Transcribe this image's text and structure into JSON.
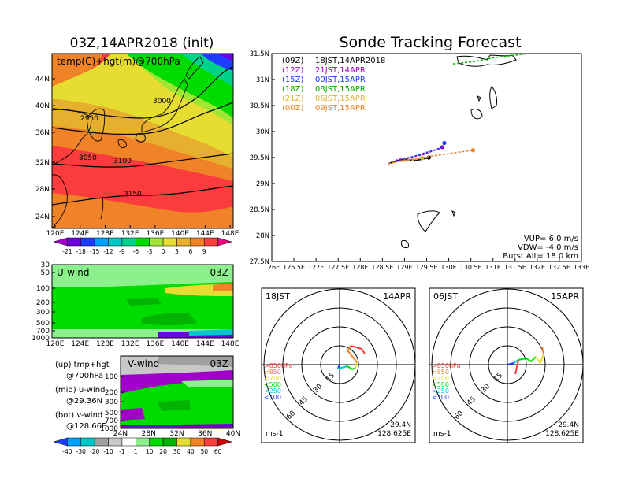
{
  "main_title": "03Z,14APR2018 (init)",
  "tracking_title": "Sonde Tracking Forecast",
  "temp_panel": {
    "label": "temp(C)+hgt(m)@700hPa",
    "xticks": [
      "120E",
      "124E",
      "128E",
      "132E",
      "136E",
      "140E",
      "144E",
      "148E"
    ],
    "yticks": [
      "44N",
      "40N",
      "36N",
      "32N",
      "28N",
      "24N"
    ],
    "contour_labels": [
      "3000",
      "2950",
      "3050",
      "3100",
      "3150"
    ],
    "colorbar": [
      "-21",
      "-18",
      "-15",
      "-12",
      "-9",
      "-6",
      "-3",
      "0",
      "3",
      "6",
      "9"
    ],
    "colors": [
      "#a000c8",
      "#6e00dc",
      "#1e3cff",
      "#00a0ff",
      "#00c8c8",
      "#00d28c",
      "#00dc00",
      "#a0e632",
      "#e6dc32",
      "#e6af2d",
      "#f08228",
      "#fa3c3c",
      "#f00082"
    ]
  },
  "u_panel": {
    "label": "U-wind",
    "time": "03Z",
    "yticks": [
      "30",
      "50",
      "100",
      "200",
      "300",
      "500",
      "700",
      "1000"
    ],
    "xticks": [
      "120E",
      "124E",
      "128E",
      "132E",
      "136E",
      "140E",
      "144E",
      "148E"
    ]
  },
  "v_panel": {
    "label": "V-wind",
    "time": "03Z",
    "yticks": [
      "100",
      "200",
      "300",
      "500",
      "700",
      "1000"
    ],
    "xticks": [
      "24N",
      "28N",
      "32N",
      "36N",
      "40N"
    ]
  },
  "legend_notes": [
    {
      "a": "(up)  tmp+hgt",
      "b": "@700hPa"
    },
    {
      "a": "(mid)  u-wind",
      "b": "@29.36N"
    },
    {
      "a": "(bot)  v-wind",
      "b": "@128.66E"
    }
  ],
  "wind_colorbar": [
    "-40",
    "-30",
    "-20",
    "-10",
    "-1",
    "1",
    "10",
    "20",
    "30",
    "40",
    "50",
    "60"
  ],
  "wind_colors": [
    "#1e3cff",
    "#00a0ff",
    "#00c8c8",
    "#a0a0a0",
    "#c8c8c8",
    "#ffffff",
    "#8cf08c",
    "#00dc00",
    "#00b400",
    "#e6dc32",
    "#f08228",
    "#fa3c3c",
    "#d20000"
  ],
  "track_legend": [
    {
      "code": "(09Z)",
      "text": "18JST,14APR2018",
      "color": "#000000"
    },
    {
      "code": "(12Z)",
      "text": "21JST,14APR",
      "color": "#a000c8"
    },
    {
      "code": "(15Z)",
      "text": "00JST,15APR",
      "color": "#1e3cff"
    },
    {
      "code": "(18Z)",
      "text": "03JST,15APR",
      "color": "#00b400"
    },
    {
      "code": "(21Z)",
      "text": "06JST,15APR",
      "color": "#e6b432"
    },
    {
      "code": "(00Z)",
      "text": "09JST,15APR",
      "color": "#f08228"
    }
  ],
  "track_info": {
    "vup": "VUP=  6.0 m/s",
    "vdw": "VDW= -4.0 m/s",
    "burst": "Burst Alt= 18.0 km"
  },
  "chart_data": {
    "type": "line",
    "title": "Sonde Tracking Forecast",
    "xlim": [
      126,
      133
    ],
    "ylim": [
      27.5,
      31.5
    ],
    "x_ticks": [
      "126E",
      "126.5E",
      "127E",
      "127.5E",
      "128E",
      "128.5E",
      "129E",
      "129.5E",
      "130E",
      "130.5E",
      "131E",
      "131.5E",
      "132E",
      "132.5E",
      "133E"
    ],
    "y_ticks": [
      "31.5N",
      "31N",
      "30.5N",
      "30N",
      "29.5N",
      "29N",
      "28.5N",
      "28N",
      "27.5N"
    ],
    "series": [
      {
        "name": "(09Z) 18JST,14APR2018",
        "color": "#000000",
        "x": [
          128.63,
          128.8,
          129.0,
          129.2,
          129.4,
          129.55
        ],
        "y": [
          29.38,
          29.43,
          29.47,
          29.44,
          29.47,
          29.5
        ]
      },
      {
        "name": "(12Z) 21JST,14APR",
        "color": "#a000c8",
        "x": [
          128.63,
          128.85,
          129.1,
          129.4,
          129.65,
          129.85
        ],
        "y": [
          29.38,
          29.46,
          29.5,
          29.55,
          29.63,
          29.7
        ]
      },
      {
        "name": "(15Z) 00JST,15APR",
        "color": "#1e3cff",
        "x": [
          128.63,
          128.9,
          129.2,
          129.5,
          129.8,
          129.9
        ],
        "y": [
          29.38,
          29.45,
          29.52,
          29.6,
          29.67,
          29.78
        ]
      },
      {
        "name": "(18Z) 03JST,15APR",
        "color": "#00b400",
        "x": [
          130.1,
          130.6,
          131.0,
          131.4,
          131.8,
          132.2,
          132.6,
          132.9
        ],
        "y": [
          31.3,
          31.35,
          31.42,
          31.46,
          31.5,
          31.58,
          31.68,
          31.78
        ]
      },
      {
        "name": "(21Z) 06JST,15APR",
        "color": "#e6b432",
        "x": [
          128.63,
          128.85,
          129.05,
          129.25,
          129.4
        ],
        "y": [
          29.38,
          29.42,
          29.43,
          29.46,
          29.49
        ]
      },
      {
        "name": "(00Z) 09JST,15APR",
        "color": "#f08228",
        "x": [
          128.63,
          129.0,
          129.4,
          129.8,
          130.2,
          130.55
        ],
        "y": [
          29.38,
          29.45,
          29.5,
          29.55,
          29.6,
          29.64
        ]
      }
    ]
  },
  "hodo_left": {
    "time": "18JST",
    "date": "14APR",
    "loc1": "29.4N",
    "loc2": "128.625E",
    "unit": "ms-1",
    "ring_labels": [
      "15",
      "30",
      "45",
      "60"
    ],
    "levels": [
      ">850hPa",
      "<850",
      "<700",
      "<500",
      "<250",
      "<100"
    ]
  },
  "hodo_right": {
    "time": "06JST",
    "date": "15APR",
    "loc1": "29.4N",
    "loc2": "128.625E",
    "unit": "ms-1",
    "ring_labels": [
      "15",
      "30",
      "45",
      "60"
    ],
    "levels": [
      ">850hPa",
      "<850",
      "<700",
      "<500",
      "<250",
      "<100"
    ]
  },
  "level_colors": [
    "#fa3c3c",
    "#f08228",
    "#e6dc32",
    "#00dc00",
    "#00c8c8",
    "#1e3cff"
  ]
}
